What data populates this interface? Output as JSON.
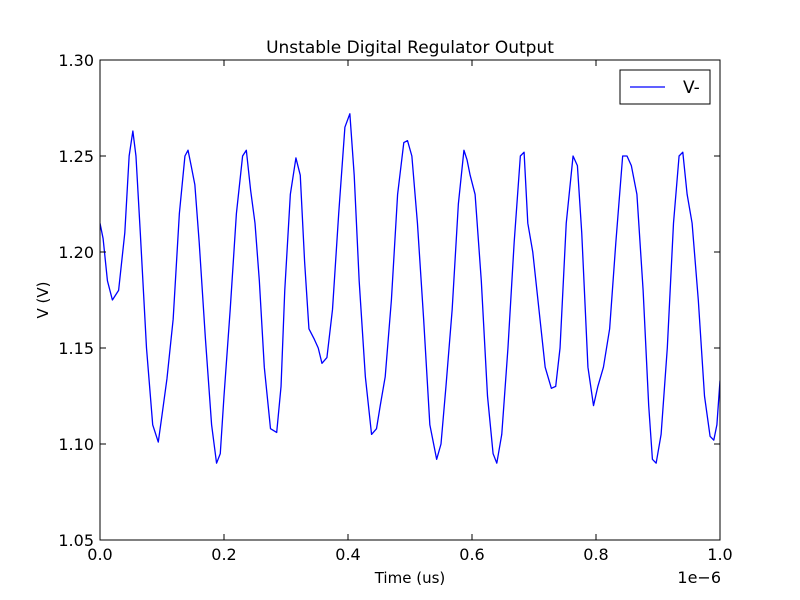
{
  "chart_data": {
    "type": "line",
    "title": "Unstable Digital Regulator Output",
    "xlabel": "Time (us)",
    "ylabel": "V (V)",
    "x_offset_label": "1e−6",
    "xlim": [
      0.0,
      1.0
    ],
    "ylim": [
      1.05,
      1.3
    ],
    "x_ticks": [
      0.0,
      0.2,
      0.4,
      0.6,
      0.8,
      1.0
    ],
    "x_tick_labels": [
      "0.0",
      "0.2",
      "0.4",
      "0.6",
      "0.8",
      "1.0"
    ],
    "y_ticks": [
      1.05,
      1.1,
      1.15,
      1.2,
      1.25,
      1.3
    ],
    "y_tick_labels": [
      "1.05",
      "1.10",
      "1.15",
      "1.20",
      "1.25",
      "1.30"
    ],
    "grid": false,
    "legend_position": "top-right",
    "series": [
      {
        "name": "V-",
        "color": "#0000ff",
        "x": [
          0.0,
          0.005,
          0.012,
          0.02,
          0.03,
          0.04,
          0.047,
          0.053,
          0.058,
          0.065,
          0.075,
          0.085,
          0.094,
          0.1,
          0.108,
          0.118,
          0.128,
          0.137,
          0.142,
          0.147,
          0.153,
          0.16,
          0.17,
          0.18,
          0.188,
          0.194,
          0.2,
          0.21,
          0.22,
          0.23,
          0.236,
          0.243,
          0.25,
          0.257,
          0.265,
          0.275,
          0.285,
          0.292,
          0.298,
          0.307,
          0.316,
          0.323,
          0.33,
          0.337,
          0.345,
          0.352,
          0.358,
          0.366,
          0.375,
          0.385,
          0.395,
          0.403,
          0.41,
          0.418,
          0.428,
          0.438,
          0.446,
          0.452,
          0.46,
          0.47,
          0.48,
          0.49,
          0.496,
          0.503,
          0.512,
          0.522,
          0.532,
          0.543,
          0.55,
          0.558,
          0.568,
          0.578,
          0.587,
          0.592,
          0.597,
          0.605,
          0.615,
          0.625,
          0.634,
          0.64,
          0.648,
          0.658,
          0.668,
          0.678,
          0.684,
          0.69,
          0.698,
          0.708,
          0.718,
          0.728,
          0.735,
          0.742,
          0.752,
          0.763,
          0.77,
          0.777,
          0.787,
          0.796,
          0.803,
          0.812,
          0.822,
          0.832,
          0.843,
          0.85,
          0.857,
          0.866,
          0.876,
          0.885,
          0.891,
          0.897,
          0.905,
          0.915,
          0.925,
          0.934,
          0.94,
          0.947,
          0.955,
          0.965,
          0.975,
          0.984,
          0.99,
          0.995,
          1.0
        ],
        "y": [
          1.215,
          1.207,
          1.185,
          1.175,
          1.18,
          1.21,
          1.25,
          1.263,
          1.25,
          1.21,
          1.15,
          1.11,
          1.101,
          1.115,
          1.134,
          1.165,
          1.22,
          1.25,
          1.253,
          1.245,
          1.235,
          1.205,
          1.155,
          1.11,
          1.09,
          1.095,
          1.125,
          1.17,
          1.22,
          1.25,
          1.253,
          1.232,
          1.215,
          1.185,
          1.14,
          1.108,
          1.106,
          1.13,
          1.18,
          1.23,
          1.249,
          1.24,
          1.195,
          1.16,
          1.155,
          1.15,
          1.142,
          1.145,
          1.17,
          1.22,
          1.265,
          1.272,
          1.24,
          1.185,
          1.135,
          1.105,
          1.108,
          1.12,
          1.135,
          1.175,
          1.23,
          1.257,
          1.258,
          1.25,
          1.215,
          1.165,
          1.11,
          1.092,
          1.1,
          1.13,
          1.17,
          1.225,
          1.253,
          1.248,
          1.24,
          1.23,
          1.185,
          1.125,
          1.095,
          1.09,
          1.105,
          1.15,
          1.205,
          1.25,
          1.252,
          1.215,
          1.2,
          1.17,
          1.14,
          1.129,
          1.13,
          1.15,
          1.215,
          1.25,
          1.245,
          1.21,
          1.14,
          1.12,
          1.13,
          1.14,
          1.16,
          1.205,
          1.25,
          1.25,
          1.245,
          1.23,
          1.18,
          1.12,
          1.092,
          1.09,
          1.105,
          1.15,
          1.215,
          1.25,
          1.252,
          1.23,
          1.215,
          1.175,
          1.125,
          1.104,
          1.102,
          1.11,
          1.133
        ]
      }
    ]
  }
}
